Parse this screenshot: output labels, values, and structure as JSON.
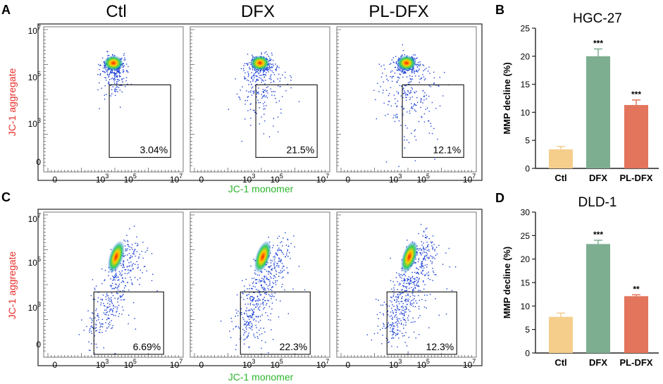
{
  "panels": {
    "A": {
      "letter": "A",
      "conditions": [
        "Ctl",
        "DFX",
        "PL-DFX"
      ],
      "percentages": [
        "3.04%",
        "21.5%",
        "12.1%"
      ],
      "ylabel": "JC-1 aggregate",
      "xlabel": "JC-1 monomer"
    },
    "C": {
      "letter": "C",
      "percentages": [
        "6.69%",
        "22.3%",
        "12.3%"
      ],
      "ylabel": "JC-1 aggregate",
      "xlabel": "JC-1 monomer"
    },
    "B": {
      "letter": "B"
    },
    "D": {
      "letter": "D"
    }
  },
  "flow_axis": {
    "x_ticks": [
      {
        "base": "0",
        "exp": ""
      },
      {
        "base": "10",
        "exp": "3"
      },
      {
        "base": "10",
        "exp": "5"
      },
      {
        "base": "10",
        "exp": "7"
      }
    ],
    "y_ticks": [
      {
        "base": "10",
        "exp": "7"
      },
      {
        "base": "10",
        "exp": "5"
      },
      {
        "base": "10",
        "exp": "3"
      },
      {
        "base": "0",
        "exp": ""
      }
    ]
  },
  "colors": {
    "Ctl": "#F5CE8C",
    "DFX": "#7DAE90",
    "PL-DFX": "#E2755C",
    "aggregate_label": "#E8302A",
    "monomer_label": "#2DB52D"
  },
  "chart_data": [
    {
      "type": "bar",
      "title": "HGC-27",
      "categories": [
        "Ctl",
        "DFX",
        "PL-DFX"
      ],
      "values": [
        3.4,
        20.0,
        11.3
      ],
      "errors": [
        0.5,
        1.3,
        0.9
      ],
      "significance": [
        "",
        "***",
        "***"
      ],
      "ylabel": "MMP decline (%)",
      "xlabel": "",
      "ylim": [
        0,
        25
      ],
      "yticks": [
        "0",
        "5",
        "10",
        "15",
        "20",
        "25"
      ]
    },
    {
      "type": "bar",
      "title": "DLD-1",
      "categories": [
        "Ctl",
        "DFX",
        "PL-DFX"
      ],
      "values": [
        7.7,
        23.2,
        12.1
      ],
      "errors": [
        0.8,
        0.8,
        0.3
      ],
      "significance": [
        "",
        "***",
        "**"
      ],
      "ylabel": "MMP decline (%)",
      "xlabel": "",
      "ylim": [
        0,
        30
      ],
      "yticks": [
        "0",
        "5",
        "10",
        "15",
        "20",
        "25",
        "30"
      ]
    }
  ]
}
